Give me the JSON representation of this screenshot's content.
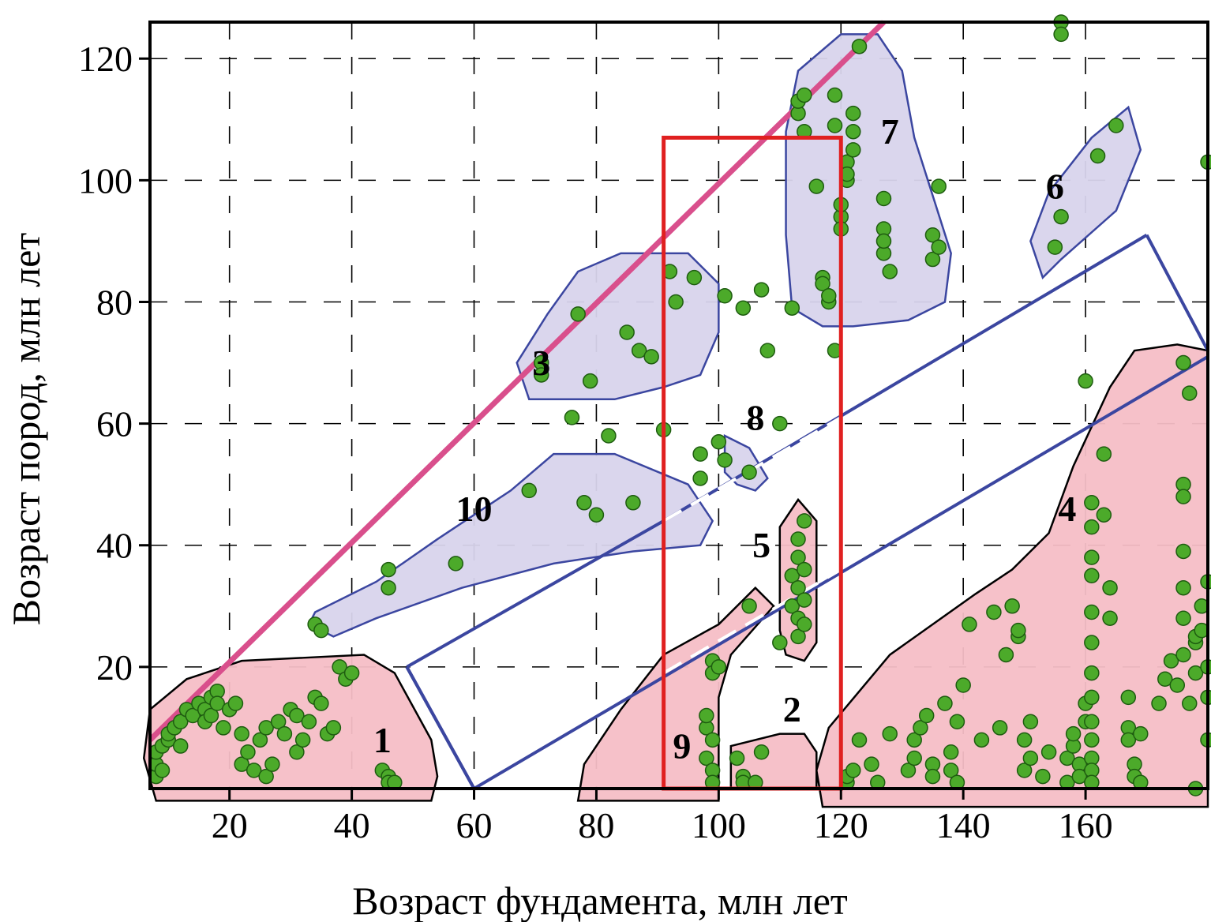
{
  "chart_data": {
    "type": "scatter",
    "title": "",
    "xlabel": "Возраст фундамента, млн лет",
    "ylabel": "Возраст пород, млн лет",
    "xlim": [
      7,
      180
    ],
    "ylim": [
      0,
      126
    ],
    "xticks": [
      20,
      40,
      60,
      80,
      100,
      120,
      140,
      160
    ],
    "yticks": [
      20,
      40,
      60,
      80,
      100,
      120
    ],
    "grid": true,
    "colors": {
      "point_fill": "#4caa2a",
      "point_stroke": "#1e5c10",
      "pink_region_fill": "#f5bec6",
      "pink_region_stroke": "#000000",
      "blue_region_fill": "#d8d4ec",
      "blue_region_stroke": "#3b46a0",
      "magenta_line": "#d94f8c",
      "box": "#e02020",
      "band": "#3b46a0"
    },
    "regions": [
      {
        "label": "1",
        "kind": "pink",
        "label_at": [
          45,
          6
        ],
        "polygon": [
          [
            6,
            5
          ],
          [
            7,
            13
          ],
          [
            13,
            18
          ],
          [
            22,
            21
          ],
          [
            32,
            21.5
          ],
          [
            42,
            22
          ],
          [
            47,
            19
          ],
          [
            53,
            8
          ],
          [
            54,
            2
          ],
          [
            53,
            -2
          ],
          [
            8,
            -2
          ]
        ]
      },
      {
        "label": "2",
        "kind": "pink",
        "label_at": [
          112,
          11
        ],
        "polygon": [
          [
            102,
            7
          ],
          [
            110,
            9
          ],
          [
            114,
            9
          ],
          [
            116,
            6
          ],
          [
            116,
            0
          ],
          [
            102,
            0
          ]
        ]
      },
      {
        "label": "3",
        "kind": "blue",
        "label_at": [
          71,
          68
        ],
        "polygon": [
          [
            67,
            70
          ],
          [
            72,
            78
          ],
          [
            77,
            85
          ],
          [
            84,
            88
          ],
          [
            95,
            88
          ],
          [
            100,
            83
          ],
          [
            100,
            75
          ],
          [
            97,
            68
          ],
          [
            91,
            66
          ],
          [
            83,
            64
          ],
          [
            69,
            64
          ]
        ]
      },
      {
        "label": "4",
        "kind": "pink",
        "label_at": [
          157,
          44
        ],
        "polygon": [
          [
            116,
            3
          ],
          [
            118,
            10
          ],
          [
            128,
            22
          ],
          [
            142,
            32
          ],
          [
            148,
            36
          ],
          [
            154,
            42
          ],
          [
            158,
            53
          ],
          [
            164,
            66
          ],
          [
            168,
            72
          ],
          [
            175,
            73
          ],
          [
            180,
            72
          ],
          [
            180,
            -3
          ],
          [
            117,
            -3
          ]
        ]
      },
      {
        "label": "5",
        "kind": "pink",
        "label_at": [
          107,
          38
        ],
        "polygon": [
          [
            110,
            43
          ],
          [
            113,
            47.5
          ],
          [
            116,
            44
          ],
          [
            116,
            24
          ],
          [
            114,
            21
          ],
          [
            111,
            22
          ],
          [
            110,
            26
          ]
        ]
      },
      {
        "label": "6",
        "kind": "pink_off",
        "label_at": [
          155,
          97
        ],
        "polygon": [
          [
            151,
            90
          ],
          [
            154,
            98
          ],
          [
            161,
            107
          ],
          [
            167,
            112
          ],
          [
            169,
            105
          ],
          [
            165,
            95
          ],
          [
            156,
            87
          ],
          [
            153,
            84
          ]
        ]
      },
      {
        "label": "7",
        "kind": "blue",
        "label_at": [
          128,
          106
        ],
        "polygon": [
          [
            111,
            108
          ],
          [
            113,
            118
          ],
          [
            120,
            124
          ],
          [
            126,
            124
          ],
          [
            130,
            118
          ],
          [
            132,
            107
          ],
          [
            138,
            88
          ],
          [
            137,
            80
          ],
          [
            131,
            77
          ],
          [
            122,
            76
          ],
          [
            117,
            76
          ],
          [
            112,
            79
          ],
          [
            111,
            91
          ]
        ]
      },
      {
        "label": "8",
        "kind": "blue",
        "label_at": [
          106,
          59
        ],
        "polygon": [
          [
            101,
            58
          ],
          [
            105,
            56
          ],
          [
            108,
            51
          ],
          [
            106,
            49
          ],
          [
            103,
            50
          ],
          [
            101,
            52
          ]
        ]
      },
      {
        "label": "9",
        "kind": "pink",
        "label_at": [
          94,
          5
        ],
        "polygon": [
          [
            78,
            4
          ],
          [
            84,
            13
          ],
          [
            91,
            22
          ],
          [
            100,
            27
          ],
          [
            106,
            33
          ],
          [
            109,
            30
          ],
          [
            102,
            22
          ],
          [
            100,
            15
          ],
          [
            100,
            5
          ],
          [
            100,
            -2
          ],
          [
            77,
            -2
          ]
        ]
      },
      {
        "label": "10",
        "kind": "blue",
        "label_at": [
          60,
          44
        ],
        "polygon": [
          [
            34,
            29
          ],
          [
            44,
            34
          ],
          [
            54,
            41
          ],
          [
            66,
            49
          ],
          [
            73,
            55
          ],
          [
            83,
            55
          ],
          [
            95,
            50
          ],
          [
            99,
            44
          ],
          [
            97,
            40
          ],
          [
            86,
            39
          ],
          [
            73,
            37
          ],
          [
            58,
            33
          ],
          [
            44,
            28
          ],
          [
            37,
            25
          ],
          [
            33,
            27
          ]
        ]
      }
    ],
    "lines": [
      {
        "name": "magenta",
        "points": [
          [
            7,
            8
          ],
          [
            127,
            126
          ]
        ]
      },
      {
        "name": "band_upper",
        "points": [
          [
            91,
            44
          ],
          [
            170,
            91
          ]
        ]
      },
      {
        "name": "band_lower",
        "points": [
          [
            60,
            0
          ],
          [
            180,
            71
          ]
        ]
      }
    ],
    "rectangle": {
      "x": [
        91,
        120
      ],
      "y": [
        0,
        107
      ]
    },
    "points": [
      [
        8,
        2
      ],
      [
        8,
        4
      ],
      [
        8,
        6
      ],
      [
        9,
        3
      ],
      [
        9,
        7
      ],
      [
        10,
        8
      ],
      [
        10,
        9
      ],
      [
        11,
        10
      ],
      [
        12,
        11
      ],
      [
        12,
        7
      ],
      [
        13,
        13
      ],
      [
        14,
        12
      ],
      [
        15,
        14
      ],
      [
        16,
        13
      ],
      [
        16,
        11
      ],
      [
        17,
        12
      ],
      [
        17,
        15
      ],
      [
        18,
        16
      ],
      [
        18,
        14
      ],
      [
        19,
        10
      ],
      [
        20,
        13
      ],
      [
        21,
        14
      ],
      [
        22,
        9
      ],
      [
        22,
        4
      ],
      [
        23,
        6
      ],
      [
        24,
        3
      ],
      [
        25,
        8
      ],
      [
        26,
        10
      ],
      [
        26,
        2
      ],
      [
        27,
        4
      ],
      [
        28,
        11
      ],
      [
        29,
        9
      ],
      [
        30,
        13
      ],
      [
        31,
        12
      ],
      [
        31,
        6
      ],
      [
        32,
        8
      ],
      [
        33,
        11
      ],
      [
        34,
        15
      ],
      [
        35,
        14
      ],
      [
        36,
        9
      ],
      [
        37,
        10
      ],
      [
        38,
        20
      ],
      [
        39,
        18
      ],
      [
        40,
        19
      ],
      [
        45,
        3
      ],
      [
        46,
        2
      ],
      [
        46,
        1
      ],
      [
        47,
        1
      ],
      [
        34,
        27
      ],
      [
        35,
        26
      ],
      [
        46,
        36
      ],
      [
        46,
        33
      ],
      [
        57,
        37
      ],
      [
        69,
        49
      ],
      [
        78,
        47
      ],
      [
        80,
        45
      ],
      [
        86,
        47
      ],
      [
        71,
        70
      ],
      [
        71,
        68
      ],
      [
        76,
        61
      ],
      [
        77,
        78
      ],
      [
        79,
        67
      ],
      [
        82,
        58
      ],
      [
        85,
        75
      ],
      [
        87,
        72
      ],
      [
        89,
        71
      ],
      [
        91,
        59
      ],
      [
        92,
        85
      ],
      [
        93,
        80
      ],
      [
        96,
        84
      ],
      [
        97,
        55
      ],
      [
        97,
        51
      ],
      [
        99,
        21
      ],
      [
        99,
        19
      ],
      [
        100,
        20
      ],
      [
        98,
        10
      ],
      [
        98,
        12
      ],
      [
        98,
        5
      ],
      [
        99,
        3
      ],
      [
        99,
        1
      ],
      [
        99,
        8
      ],
      [
        100,
        57
      ],
      [
        101,
        54
      ],
      [
        101,
        81
      ],
      [
        104,
        79
      ],
      [
        105,
        30
      ],
      [
        105,
        52
      ],
      [
        107,
        82
      ],
      [
        108,
        72
      ],
      [
        103,
        5
      ],
      [
        104,
        2
      ],
      [
        104,
        1
      ],
      [
        106,
        1
      ],
      [
        107,
        6
      ],
      [
        110,
        24
      ],
      [
        110,
        60
      ],
      [
        112,
        30
      ],
      [
        112,
        35
      ],
      [
        113,
        25
      ],
      [
        113,
        28
      ],
      [
        113,
        33
      ],
      [
        113,
        38
      ],
      [
        113,
        41
      ],
      [
        114,
        44
      ],
      [
        114,
        36
      ],
      [
        114,
        31
      ],
      [
        114,
        27
      ],
      [
        112,
        79
      ],
      [
        113,
        111
      ],
      [
        113,
        113
      ],
      [
        114,
        114
      ],
      [
        114,
        108
      ],
      [
        116,
        99
      ],
      [
        117,
        84
      ],
      [
        117,
        83
      ],
      [
        118,
        80
      ],
      [
        118,
        81
      ],
      [
        119,
        72
      ],
      [
        119,
        109
      ],
      [
        119,
        114
      ],
      [
        120,
        94
      ],
      [
        120,
        92
      ],
      [
        120,
        96
      ],
      [
        121,
        100
      ],
      [
        121,
        103
      ],
      [
        121,
        101
      ],
      [
        122,
        105
      ],
      [
        122,
        111
      ],
      [
        122,
        108
      ],
      [
        123,
        122
      ],
      [
        127,
        88
      ],
      [
        127,
        92
      ],
      [
        127,
        90
      ],
      [
        127,
        97
      ],
      [
        128,
        85
      ],
      [
        135,
        87
      ],
      [
        135,
        91
      ],
      [
        136,
        89
      ],
      [
        136,
        99
      ],
      [
        121,
        1
      ],
      [
        121,
        2
      ],
      [
        122,
        3
      ],
      [
        123,
        8
      ],
      [
        125,
        4
      ],
      [
        126,
        1
      ],
      [
        128,
        9
      ],
      [
        131,
        3
      ],
      [
        132,
        5
      ],
      [
        132,
        8
      ],
      [
        133,
        10
      ],
      [
        134,
        12
      ],
      [
        135,
        4
      ],
      [
        135,
        2
      ],
      [
        137,
        14
      ],
      [
        138,
        3
      ],
      [
        138,
        6
      ],
      [
        139,
        1
      ],
      [
        139,
        11
      ],
      [
        140,
        17
      ],
      [
        141,
        27
      ],
      [
        143,
        8
      ],
      [
        145,
        29
      ],
      [
        146,
        10
      ],
      [
        147,
        22
      ],
      [
        148,
        30
      ],
      [
        149,
        25
      ],
      [
        149,
        26
      ],
      [
        150,
        3
      ],
      [
        150,
        8
      ],
      [
        151,
        5
      ],
      [
        151,
        11
      ],
      [
        153,
        2
      ],
      [
        154,
        6
      ],
      [
        155,
        89
      ],
      [
        156,
        94
      ],
      [
        156,
        126
      ],
      [
        156,
        124
      ],
      [
        157,
        1
      ],
      [
        157,
        5
      ],
      [
        158,
        7
      ],
      [
        158,
        9
      ],
      [
        159,
        4
      ],
      [
        159,
        2
      ],
      [
        160,
        67
      ],
      [
        160,
        14
      ],
      [
        160,
        11
      ],
      [
        161,
        47
      ],
      [
        161,
        43
      ],
      [
        161,
        38
      ],
      [
        161,
        35
      ],
      [
        161,
        29
      ],
      [
        161,
        24
      ],
      [
        161,
        19
      ],
      [
        161,
        15
      ],
      [
        161,
        11
      ],
      [
        161,
        8
      ],
      [
        161,
        5
      ],
      [
        161,
        3
      ],
      [
        161,
        1
      ],
      [
        162,
        104
      ],
      [
        163,
        55
      ],
      [
        163,
        45
      ],
      [
        164,
        28
      ],
      [
        164,
        33
      ],
      [
        165,
        109
      ],
      [
        167,
        10
      ],
      [
        167,
        15
      ],
      [
        167,
        8
      ],
      [
        168,
        4
      ],
      [
        168,
        2
      ],
      [
        169,
        9
      ],
      [
        169,
        1
      ],
      [
        172,
        14
      ],
      [
        173,
        18
      ],
      [
        174,
        21
      ],
      [
        175,
        17
      ],
      [
        176,
        70
      ],
      [
        176,
        50
      ],
      [
        176,
        48
      ],
      [
        176,
        39
      ],
      [
        176,
        33
      ],
      [
        176,
        28
      ],
      [
        176,
        22
      ],
      [
        177,
        65
      ],
      [
        177,
        14
      ],
      [
        178,
        19
      ],
      [
        178,
        24
      ],
      [
        178,
        25
      ],
      [
        179,
        26
      ],
      [
        179,
        30
      ],
      [
        180,
        34
      ],
      [
        180,
        103
      ],
      [
        180,
        20
      ],
      [
        180,
        15
      ],
      [
        180,
        8
      ],
      [
        178,
        0
      ]
    ]
  }
}
